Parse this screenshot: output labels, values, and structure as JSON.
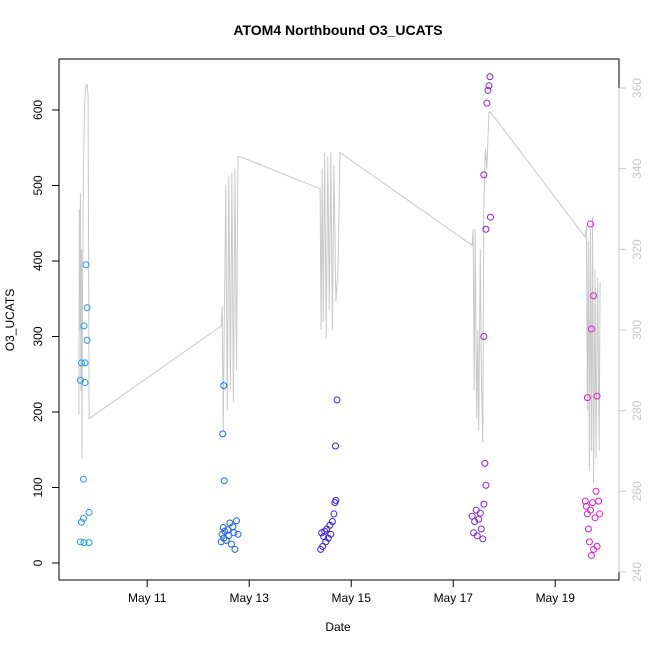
{
  "chart_data": {
    "type": "scatter",
    "title": "ATOM4 Northbound O3_UCATS",
    "x_label": "Date",
    "y_label": "O3_UCATS",
    "xlim": [
      9.27,
      20.25
    ],
    "ylim": [
      -22.5,
      667.5
    ],
    "y2lim": [
      238,
      367.2
    ],
    "xticks": [
      {
        "value": 11,
        "label": "May 11"
      },
      {
        "value": 13,
        "label": "May 13"
      },
      {
        "value": 15,
        "label": "May 15"
      },
      {
        "value": 17,
        "label": "May 17"
      },
      {
        "value": 19,
        "label": "May 19"
      }
    ],
    "yticks": [
      0,
      100,
      200,
      300,
      400,
      500,
      600
    ],
    "y2ticks": [
      240,
      260,
      280,
      300,
      320,
      340,
      360
    ],
    "y2_color": "#c8c8c8",
    "series": [
      {
        "type": "line",
        "axis": "y2",
        "color": "#c8c8c8",
        "x": [
          9.66,
          9.67,
          9.68,
          9.69,
          9.7,
          9.71,
          9.72,
          9.73,
          9.75,
          9.77,
          9.79,
          9.82,
          9.84,
          9.86,
          12.45,
          12.47,
          12.49,
          12.51,
          12.54,
          12.57,
          12.6,
          12.63,
          12.66,
          12.69,
          12.72,
          12.75,
          12.78,
          12.82,
          14.39,
          14.41,
          14.43,
          14.45,
          14.48,
          14.51,
          14.54,
          14.57,
          14.6,
          14.63,
          14.66,
          14.7,
          14.74,
          14.78,
          17.37,
          17.39,
          17.41,
          17.43,
          17.46,
          17.48,
          17.5,
          17.53,
          17.55,
          17.58,
          17.6,
          17.63,
          17.66,
          17.7,
          17.73,
          19.59,
          19.61,
          19.63,
          19.65,
          19.67,
          19.69,
          19.71,
          19.73,
          19.75,
          19.78,
          19.8,
          19.83,
          19.86,
          19.88
        ],
        "values": [
          279,
          330,
          300,
          334,
          285,
          320,
          268,
          310,
          340,
          355,
          360,
          361,
          358,
          278,
          301,
          306,
          275,
          300,
          336,
          280,
          338,
          285,
          339,
          282,
          340,
          290,
          343,
          343,
          335,
          300,
          340,
          302,
          344,
          298,
          343,
          305,
          344,
          300,
          341,
          307,
          315,
          344,
          321,
          325,
          285,
          325,
          278,
          300,
          275,
          320,
          290,
          272,
          330,
          345,
          340,
          354,
          354,
          323,
          326,
          280,
          322,
          265,
          325,
          270,
          328,
          262,
          315,
          268,
          313,
          270,
          312
        ]
      },
      {
        "color": "#1e9bef",
        "x": [
          9.69,
          9.76,
          9.86,
          9.71,
          9.75,
          9.86,
          9.75,
          9.69,
          9.78,
          9.71,
          9.78,
          9.76,
          9.82,
          9.82,
          9.8
        ],
        "values": [
          28,
          27,
          27,
          54,
          59,
          67,
          111,
          242,
          239,
          265,
          265,
          314,
          295,
          338,
          395
        ]
      },
      {
        "color": "#1d63ea",
        "x": [
          12.45,
          12.47,
          12.49,
          12.5,
          12.52,
          12.55,
          12.58,
          12.6,
          12.62,
          12.65,
          12.68,
          12.7,
          12.72,
          12.75,
          12.78,
          12.5,
          12.48,
          12.51
        ],
        "values": [
          28,
          38,
          47,
          33,
          42,
          30,
          44,
          36,
          53,
          25,
          48,
          40,
          18,
          56,
          38,
          235,
          171,
          109
        ]
      },
      {
        "color": "#3a1de8",
        "x": [
          14.4,
          14.42,
          14.44,
          14.46,
          14.48,
          14.5,
          14.52,
          14.55,
          14.58,
          14.6,
          14.63,
          14.66,
          14.68,
          14.7,
          14.69,
          14.72
        ],
        "values": [
          18,
          40,
          22,
          35,
          42,
          28,
          45,
          33,
          50,
          38,
          55,
          65,
          80,
          83,
          155,
          216
        ]
      },
      {
        "color": "#8b1ed9",
        "x": [
          17.37,
          17.4,
          17.42,
          17.45,
          17.47,
          17.5,
          17.53,
          17.55,
          17.58,
          17.6,
          17.62,
          17.64,
          17.6,
          17.64,
          17.6,
          17.73,
          17.66,
          17.68,
          17.7,
          17.72
        ],
        "values": [
          62,
          40,
          55,
          70,
          36,
          58,
          66,
          45,
          32,
          78,
          132,
          103,
          300,
          442,
          514,
          458,
          609,
          626,
          632,
          644
        ]
      },
      {
        "color": "#e61cd0",
        "x": [
          19.59,
          19.61,
          19.63,
          19.65,
          19.67,
          19.69,
          19.71,
          19.73,
          19.75,
          19.78,
          19.8,
          19.82,
          19.85,
          19.87,
          19.69,
          19.75,
          19.71,
          19.63,
          19.82
        ],
        "values": [
          82,
          75,
          65,
          45,
          28,
          70,
          10,
          80,
          18,
          60,
          95,
          22,
          82,
          65,
          449,
          354,
          310,
          219,
          221
        ]
      }
    ]
  }
}
